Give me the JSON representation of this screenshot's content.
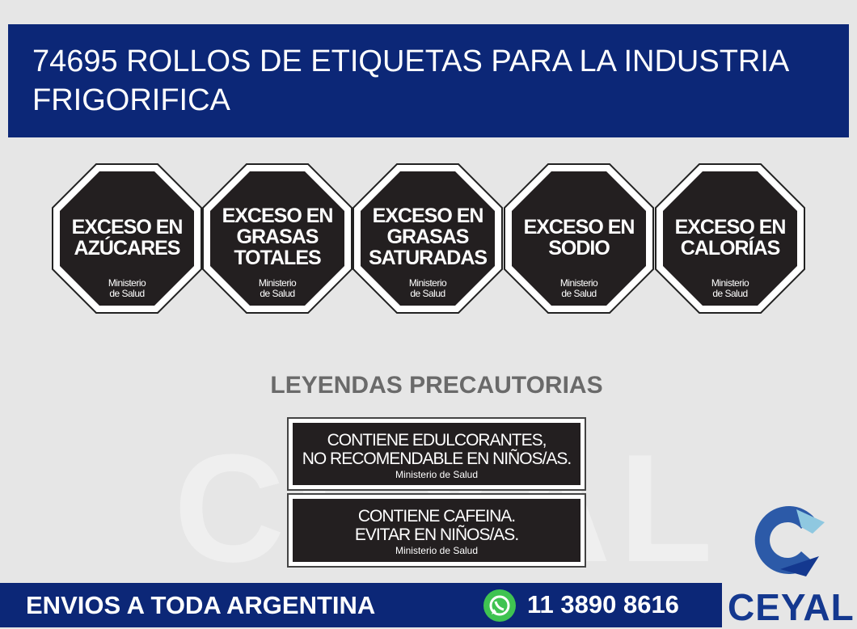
{
  "title": "74695 ROLLOS DE ETIQUETAS PARA LA INDUSTRIA FRIGORIFICA",
  "octagons": [
    {
      "lines": [
        "EXCESO EN",
        "AZÚCARES"
      ],
      "ministry": [
        "Ministerio",
        "de Salud"
      ]
    },
    {
      "lines": [
        "EXCESO EN",
        "GRASAS",
        "TOTALES"
      ],
      "ministry": [
        "Ministerio",
        "de Salud"
      ]
    },
    {
      "lines": [
        "EXCESO EN",
        "GRASAS",
        "SATURADAS"
      ],
      "ministry": [
        "Ministerio",
        "de Salud"
      ]
    },
    {
      "lines": [
        "EXCESO EN",
        "SODIO"
      ],
      "ministry": [
        "Ministerio",
        "de Salud"
      ]
    },
    {
      "lines": [
        "EXCESO EN",
        "CALORÍAS"
      ],
      "ministry": [
        "Ministerio",
        "de Salud"
      ]
    }
  ],
  "heading": "LEYENDAS PRECAUTORIAS",
  "warnings": [
    {
      "lines": [
        "CONTIENE EDULCORANTES,",
        "NO RECOMENDABLE EN NIÑOS/AS."
      ],
      "ministry": "Ministerio de Salud"
    },
    {
      "lines": [
        "CONTIENE CAFEINA.",
        "EVITAR EN NIÑOS/AS."
      ],
      "ministry": "Ministerio de Salud"
    }
  ],
  "watermark": "CEYAL",
  "footer": {
    "shipping": "ENVIOS A TODA ARGENTINA",
    "phone": "11 3890 8616",
    "icon": "whatsapp-icon"
  },
  "brand": {
    "name": "CEYAL",
    "colors": {
      "navy": "#0c2777",
      "logo_blue": "#2c5aa8",
      "logo_light": "#8fc8e0",
      "whatsapp": "#3fc351"
    }
  }
}
